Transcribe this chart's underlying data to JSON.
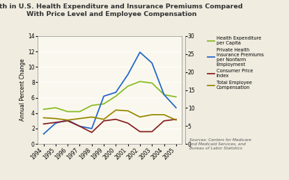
{
  "title": "Growth in U.S. Health Expenditure and Insurance Premiums Compared\nWith Price Level and Employee Compensation",
  "ylabel_left": "Annual Percent Change",
  "years": [
    1994,
    1995,
    1996,
    1997,
    1998,
    1999,
    2000,
    2001,
    2002,
    2003,
    2004,
    2005
  ],
  "health_expenditure": [
    4.5,
    4.7,
    4.2,
    4.2,
    5.0,
    5.2,
    6.2,
    7.5,
    8.1,
    7.9,
    6.4,
    6.1
  ],
  "private_health_insurance": [
    1.3,
    2.7,
    3.1,
    2.3,
    2.0,
    6.2,
    6.7,
    9.0,
    11.9,
    10.5,
    6.4,
    4.7
  ],
  "cpi": [
    2.6,
    2.8,
    3.0,
    2.3,
    1.5,
    3.0,
    3.2,
    2.7,
    1.6,
    1.6,
    3.0,
    3.2
  ],
  "total_employee_comp": [
    3.4,
    3.3,
    3.1,
    3.3,
    3.5,
    3.2,
    4.4,
    4.3,
    3.5,
    3.8,
    3.8,
    3.1
  ],
  "color_health": "#88bb22",
  "color_insurance": "#2266cc",
  "color_cpi": "#882222",
  "color_emp": "#998800",
  "ylim_left": [
    0,
    14
  ],
  "ylim_right": [
    0,
    30
  ],
  "yticks_left": [
    0,
    2,
    4,
    6,
    8,
    10,
    12,
    14
  ],
  "yticks_right": [
    0,
    5,
    10,
    15,
    20,
    25,
    30
  ],
  "plot_bg": "#faf8ee",
  "fig_bg": "#f0ece0",
  "source_text": "Sources: Centers for Medicare\nand Medicaid Services, and\nBureau of Labor Statistics",
  "legend_labels": [
    "Health Expenditure\nper Capita",
    "Private Health\nInsurance Premiums\nper Nonfarm\nEmployment",
    "Consumer Price\nIndex",
    "Total Employee\nCompensation"
  ]
}
